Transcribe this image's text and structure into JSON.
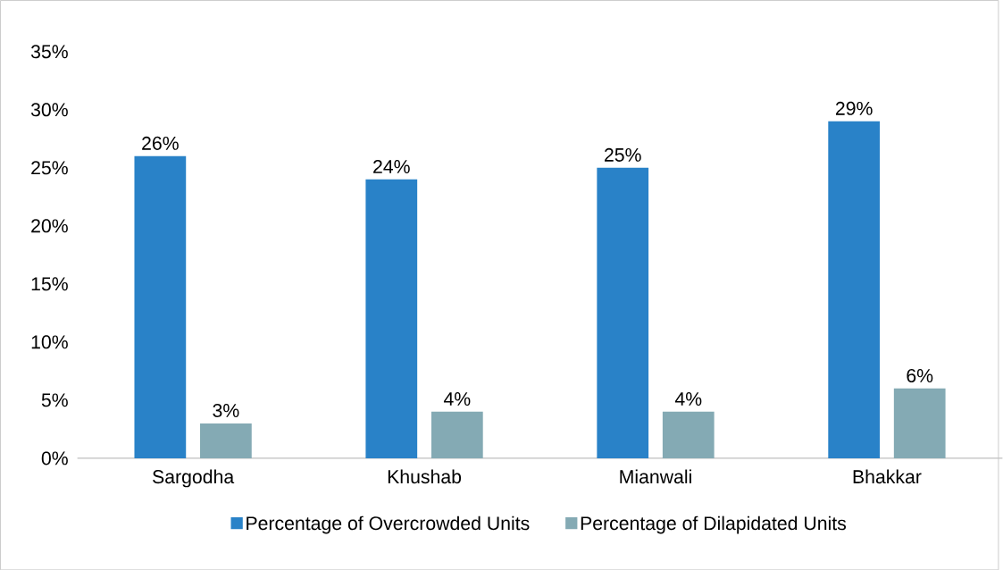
{
  "chart_data": {
    "type": "bar",
    "categories": [
      "Sargodha",
      "Khushab",
      "Mianwali",
      "Bhakkar"
    ],
    "series": [
      {
        "name": "Percentage of Overcrowded Units",
        "color": "#2982c8",
        "values": [
          26,
          24,
          25,
          29
        ],
        "value_labels": [
          "26%",
          "24%",
          "25%",
          "29%"
        ]
      },
      {
        "name": "Percentage of Dilapidated Units",
        "color": "#84aab4",
        "values": [
          3,
          4,
          4,
          6
        ],
        "value_labels": [
          "3%",
          "4%",
          "4%",
          "6%"
        ]
      }
    ],
    "ylim": [
      0,
      35
    ],
    "yticks": [
      {
        "value": 0,
        "label": "0%"
      },
      {
        "value": 5,
        "label": "5%"
      },
      {
        "value": 10,
        "label": "10%"
      },
      {
        "value": 15,
        "label": "15%"
      },
      {
        "value": 20,
        "label": "20%"
      },
      {
        "value": 25,
        "label": "25%"
      },
      {
        "value": 30,
        "label": "30%"
      },
      {
        "value": 35,
        "label": "35%"
      }
    ],
    "grid": false,
    "legend": "bottom"
  }
}
